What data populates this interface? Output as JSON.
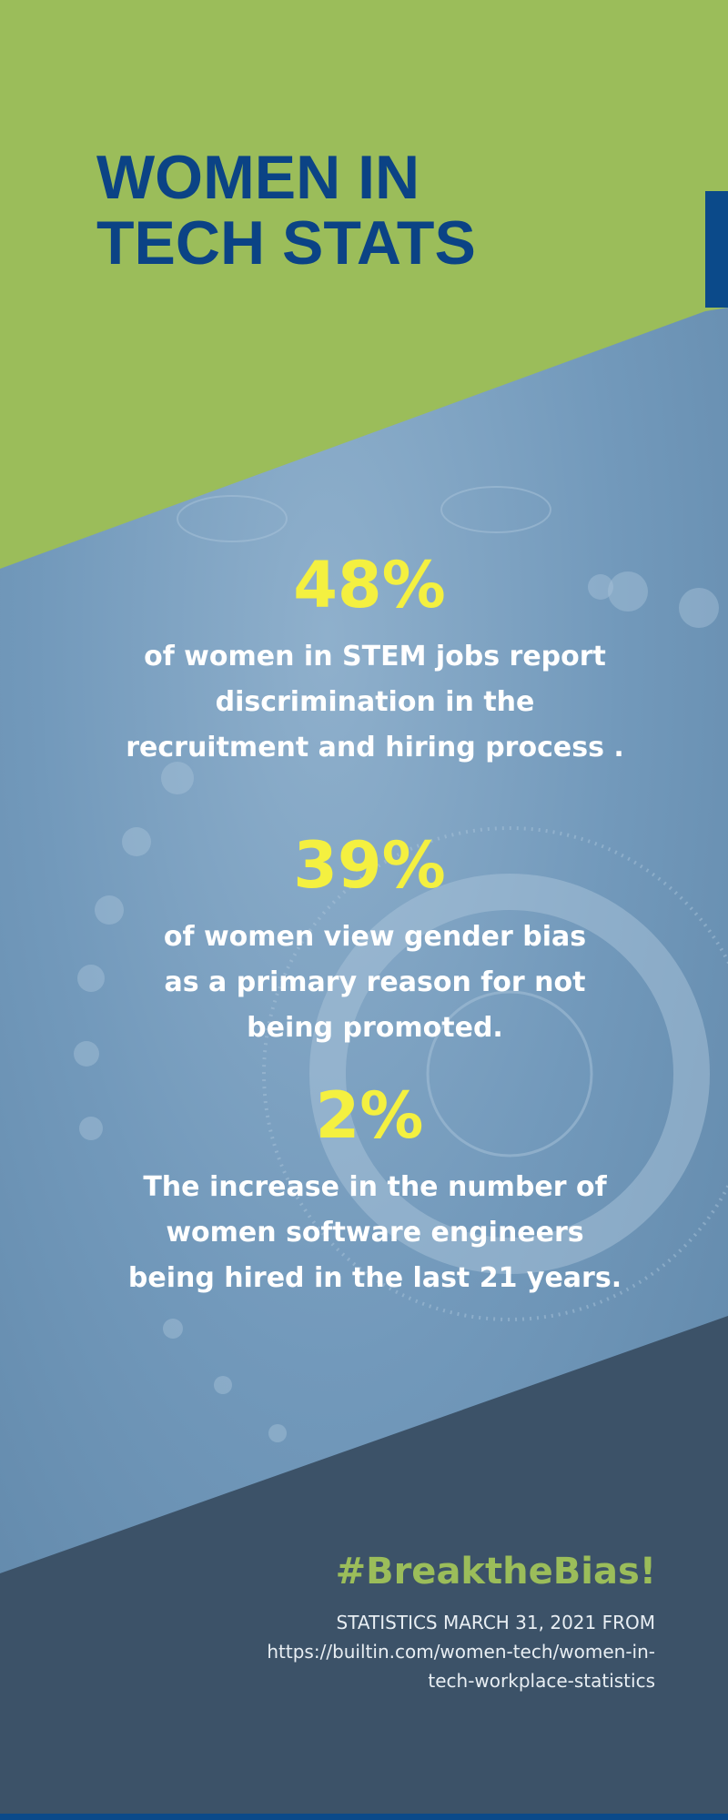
{
  "header": {
    "title": [
      "WOMEN IN",
      "TECH STATS"
    ]
  },
  "stats": [
    {
      "value": "48%",
      "lines": [
        "of women in STEM jobs report",
        "discrimination in the",
        "recruitment and hiring process ."
      ]
    },
    {
      "value": "39%",
      "lines": [
        "of women view gender bias",
        "as a primary reason for not",
        "being promoted."
      ]
    },
    {
      "value": "2%",
      "lines": [
        "The increase in the number  of",
        "women software engineers",
        "being hired in the last 21 years."
      ]
    }
  ],
  "footer": {
    "hashtag": "#BreaktheBias!",
    "source": [
      "STATISTICS MARCH 31, 2021 FROM",
      "https://builtin.com/women-tech/women-in-",
      "tech-workplace-statistics"
    ]
  }
}
